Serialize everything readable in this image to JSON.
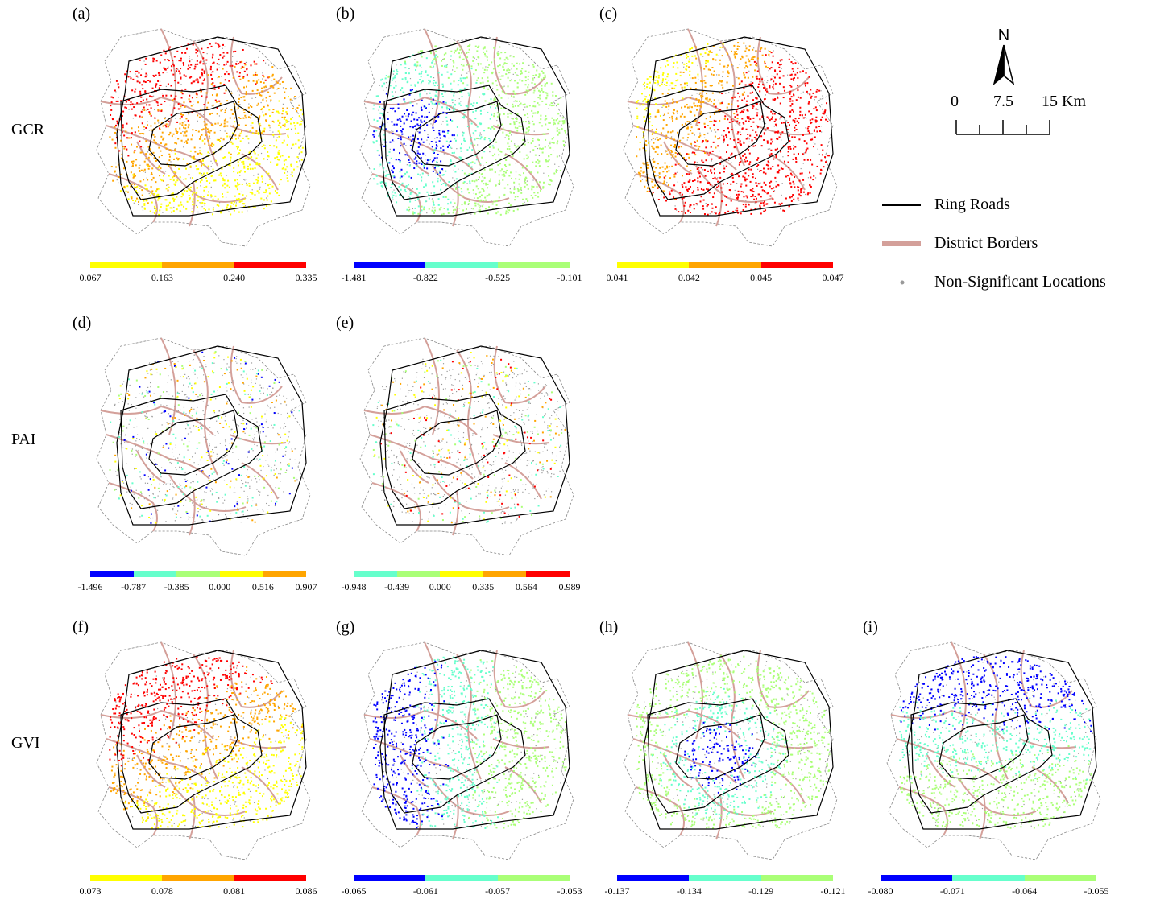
{
  "rows": [
    {
      "label": "GCR"
    },
    {
      "label": "PAI"
    },
    {
      "label": "GVI"
    }
  ],
  "panels": [
    {
      "id": "a",
      "label": "(a)",
      "ticks": [
        "0.067",
        "0.163",
        "0.240",
        "0.335"
      ],
      "colors": [
        "#ffff00",
        "#ffa500",
        "#ff0000"
      ],
      "dominant": "yellow-orange-red"
    },
    {
      "id": "b",
      "label": "(b)",
      "ticks": [
        "-1.481",
        "-0.822",
        "-0.525",
        "-0.101"
      ],
      "colors": [
        "#0000ff",
        "#66ffcc",
        "#aaff77"
      ],
      "dominant": "blue-cyan-green"
    },
    {
      "id": "c",
      "label": "(c)",
      "ticks": [
        "0.041",
        "0.042",
        "0.045",
        "0.047"
      ],
      "colors": [
        "#ffff00",
        "#ffa500",
        "#ff0000"
      ],
      "dominant": "yellow-orange-red"
    },
    {
      "id": "d",
      "label": "(d)",
      "ticks": [
        "-1.496",
        "-0.787",
        "-0.385",
        "0.000",
        "0.516",
        "0.907"
      ],
      "colors": [
        "#0000ff",
        "#66ffcc",
        "#aaff77",
        "#ffff00",
        "#ffa500"
      ],
      "dominant": "sparse-mixed"
    },
    {
      "id": "e",
      "label": "(e)",
      "ticks": [
        "-0.948",
        "-0.439",
        "0.000",
        "0.335",
        "0.564",
        "0.989"
      ],
      "colors": [
        "#66ffcc",
        "#aaff77",
        "#ffff00",
        "#ffa500",
        "#ff0000"
      ],
      "dominant": "sparse-mixed"
    },
    {
      "id": "f",
      "label": "(f)",
      "ticks": [
        "0.073",
        "0.078",
        "0.081",
        "0.086"
      ],
      "colors": [
        "#ffff00",
        "#ffa500",
        "#ff0000"
      ],
      "dominant": "yellow-orange-red"
    },
    {
      "id": "g",
      "label": "(g)",
      "ticks": [
        "-0.065",
        "-0.061",
        "-0.057",
        "-0.053"
      ],
      "colors": [
        "#0000ff",
        "#66ffcc",
        "#aaff77"
      ],
      "dominant": "blue-cyan-green"
    },
    {
      "id": "h",
      "label": "(h)",
      "ticks": [
        "-0.137",
        "-0.134",
        "-0.129",
        "-0.121"
      ],
      "colors": [
        "#0000ff",
        "#66ffcc",
        "#aaff77"
      ],
      "dominant": "blue-cyan-green"
    },
    {
      "id": "i",
      "label": "(i)",
      "ticks": [
        "-0.080",
        "-0.071",
        "-0.064",
        "-0.055"
      ],
      "colors": [
        "#0000ff",
        "#66ffcc",
        "#aaff77"
      ],
      "dominant": "blue-cyan-green"
    }
  ],
  "north_arrow": {
    "label": "N"
  },
  "scale_bar": {
    "ticks": [
      "0",
      "7.5",
      "15 Km"
    ]
  },
  "legend": {
    "ring_roads": "Ring Roads",
    "district_borders": "District Borders",
    "non_significant": "Non-Significant Locations"
  },
  "colors": {
    "ring_road": "#000000",
    "district_border": "#d4a09a",
    "non_significant": "#999999",
    "outline": "#888888"
  }
}
